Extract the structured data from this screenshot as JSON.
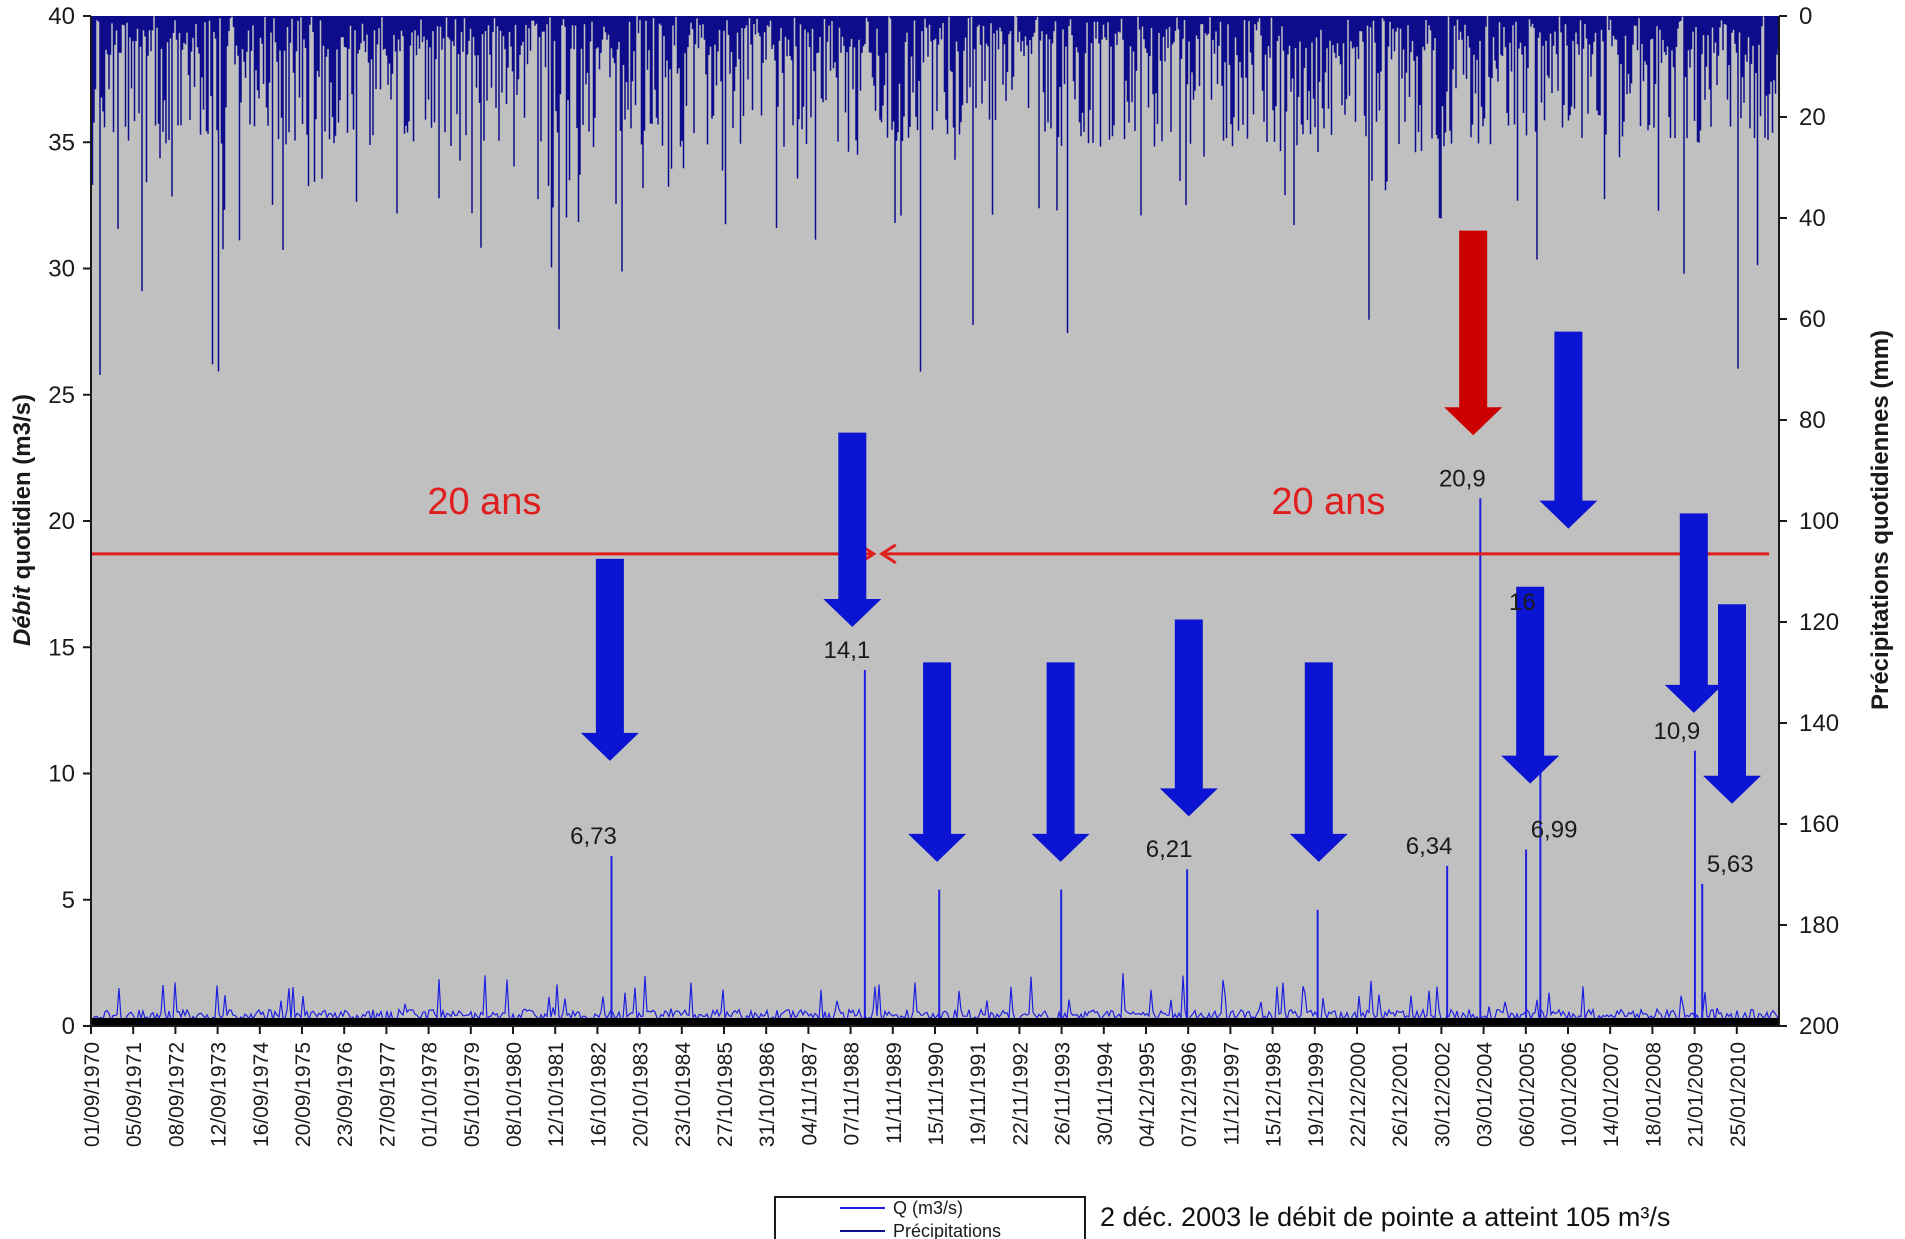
{
  "chart_data": {
    "type": "line",
    "ylabel_emph": "Débit",
    "ylabel_rest": " quotidien (m3/s)",
    "ylabel_right": "Précipitations quotidiennes (mm)",
    "ylim": [
      0,
      40
    ],
    "ylim_right": [
      0,
      200
    ],
    "yticks": [
      "0",
      "5",
      "10",
      "15",
      "20",
      "25",
      "30",
      "35",
      "40"
    ],
    "yticks_right": [
      "0",
      "20",
      "40",
      "60",
      "80",
      "100",
      "120",
      "140",
      "160",
      "180",
      "200"
    ],
    "x_start": "1970-09-01",
    "x_end": "2011-01-25",
    "x_ticks": [
      "01/09/1970",
      "05/09/1971",
      "08/09/1972",
      "12/09/1973",
      "16/09/1974",
      "20/09/1975",
      "23/09/1976",
      "27/09/1977",
      "01/10/1978",
      "05/10/1979",
      "08/10/1980",
      "12/10/1981",
      "16/10/1982",
      "20/10/1983",
      "23/10/1984",
      "27/10/1985",
      "31/10/1986",
      "04/11/1987",
      "07/11/1988",
      "11/11/1989",
      "15/11/1990",
      "19/11/1991",
      "22/11/1992",
      "26/11/1993",
      "30/11/1994",
      "04/12/1995",
      "07/12/1996",
      "11/12/1997",
      "15/12/1998",
      "19/12/1999",
      "22/12/2000",
      "26/12/2001",
      "30/12/2002",
      "03/01/2004",
      "06/01/2005",
      "10/01/2006",
      "14/01/2007",
      "18/01/2008",
      "21/01/2009",
      "25/01/2010"
    ],
    "series": [
      {
        "name": "Q (m3/s)",
        "color": "#1f1fe0",
        "axis": "left"
      },
      {
        "name": "Précipitations",
        "color": "#0d0d8c",
        "axis": "right"
      }
    ],
    "flood_peaks": [
      {
        "date": "1983-02-15",
        "value": 6.73,
        "label": "6,73",
        "label_side": "left"
      },
      {
        "date": "1989-03-10",
        "value": 14.1,
        "label": "14,1",
        "label_side": "left"
      },
      {
        "date": "1990-12-20",
        "value": 5.4,
        "label": "",
        "label_side": "left"
      },
      {
        "date": "1993-11-20",
        "value": 5.4,
        "label": "",
        "label_side": "left"
      },
      {
        "date": "1996-11-25",
        "value": 6.21,
        "label": "6,21",
        "label_side": "left"
      },
      {
        "date": "2000-01-10",
        "value": 4.6,
        "label": "",
        "label_side": "left"
      },
      {
        "date": "2003-02-15",
        "value": 6.34,
        "label": "6,34",
        "label_side": "left"
      },
      {
        "date": "2003-12-02",
        "value": 20.9,
        "label": "20,9",
        "label_side": "left"
      },
      {
        "date": "2005-01-05",
        "value": 6.99,
        "label": "6,99",
        "label_side": "right"
      },
      {
        "date": "2005-05-10",
        "value": 16,
        "label": "16",
        "label_side": "left"
      },
      {
        "date": "2009-01-20",
        "value": 10.9,
        "label": "10,9",
        "label_side": "left"
      },
      {
        "date": "2009-03-25",
        "value": 5.63,
        "label": "5,63",
        "label_side": "right"
      }
    ],
    "period_marker": {
      "value": 18.7,
      "color": "#e01e1e",
      "split_date": "1989-07-01",
      "labels": [
        "20 ans",
        "20 ans"
      ]
    },
    "arrows": [
      {
        "date": "1983-02-01",
        "from": 18.5,
        "to": 10.5,
        "color": "#0a14d2"
      },
      {
        "date": "1988-11-20",
        "from": 23.5,
        "to": 15.8,
        "color": "#0a14d2"
      },
      {
        "date": "1990-12-01",
        "from": 14.4,
        "to": 6.5,
        "color": "#0a14d2"
      },
      {
        "date": "1993-11-15",
        "from": 14.4,
        "to": 6.5,
        "color": "#0a14d2"
      },
      {
        "date": "1996-12-10",
        "from": 16.1,
        "to": 8.3,
        "color": "#0a14d2"
      },
      {
        "date": "2000-01-20",
        "from": 14.4,
        "to": 6.5,
        "color": "#0a14d2"
      },
      {
        "date": "2003-10-01",
        "from": 31.5,
        "to": 23.4,
        "color": "#cc0000"
      },
      {
        "date": "2005-02-10",
        "from": 17.4,
        "to": 9.6,
        "color": "#0a14d2"
      },
      {
        "date": "2006-01-10",
        "from": 27.5,
        "to": 19.7,
        "color": "#0a14d2"
      },
      {
        "date": "2009-01-10",
        "from": 20.3,
        "to": 12.4,
        "color": "#0a14d2"
      },
      {
        "date": "2009-12-10",
        "from": 16.7,
        "to": 8.8,
        "color": "#0a14d2"
      }
    ],
    "colors": {
      "plot_bg": "#c0c0c0",
      "grid": "#c0c0c0"
    }
  },
  "legend": {
    "items": [
      {
        "label": "Q (m3/s)",
        "color": "#1f1fe0"
      },
      {
        "label": "Précipitations",
        "color": "#0d0d8c"
      }
    ]
  },
  "footnote": "2 déc. 2003 le débit de pointe a atteint 105 m³/s"
}
